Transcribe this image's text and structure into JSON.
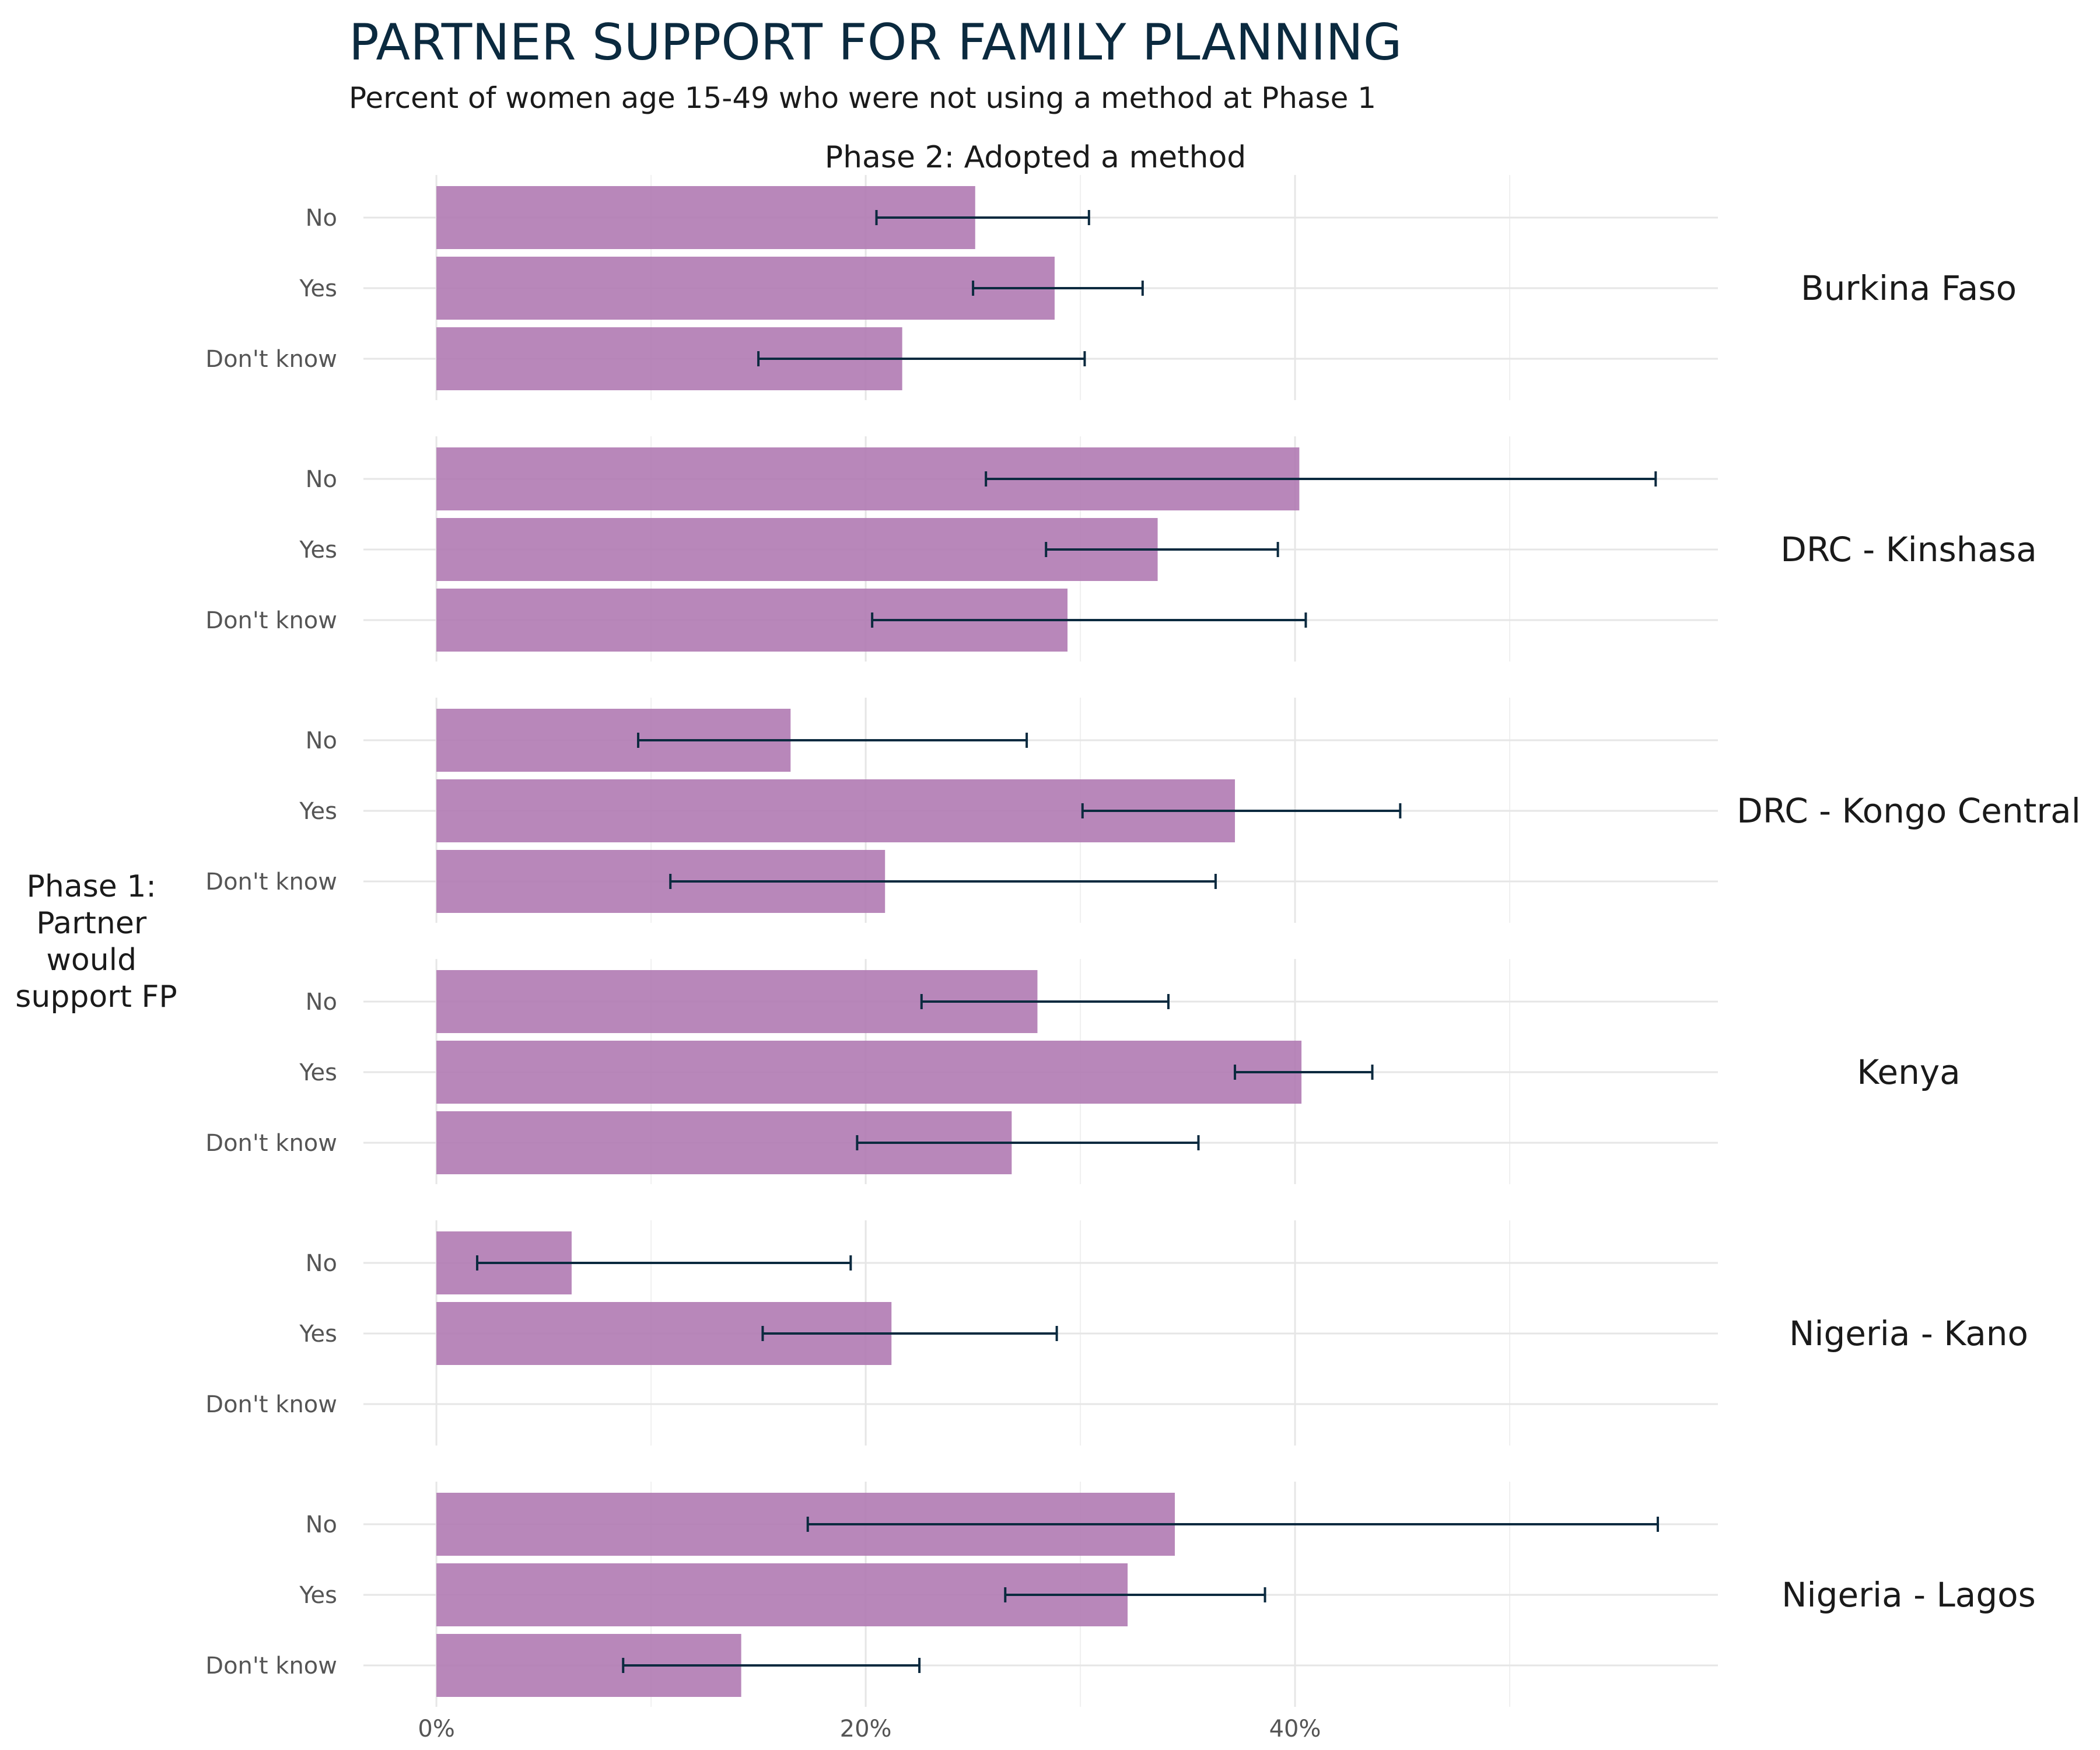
{
  "chart_data": {
    "type": "bar",
    "orientation": "horizontal",
    "title": "PARTNER SUPPORT FOR FAMILY PLANNING",
    "subtitle": "Percent of women age 15-49 who were not using a method at Phase 1",
    "facet_title": "Phase 2: Adopted a method",
    "ylabel_lines": [
      "Phase 1:",
      "Partner",
      "would",
      "support FP"
    ],
    "categories": [
      "No",
      "Yes",
      "Don't know"
    ],
    "x_ticks": [
      {
        "value": 0,
        "label": "0%"
      },
      {
        "value": 20,
        "label": "20%"
      },
      {
        "value": 40,
        "label": "40%"
      }
    ],
    "xlim": [
      -3.4,
      59.7
    ],
    "grid": true,
    "bar_color": "#b07ab3",
    "errorbar_color": "#0b2a3f",
    "panels": [
      {
        "name": "Burkina Faso",
        "bars": [
          {
            "category": "No",
            "value": 25.1,
            "lo": 20.5,
            "hi": 30.4
          },
          {
            "category": "Yes",
            "value": 28.8,
            "lo": 25.0,
            "hi": 32.9
          },
          {
            "category": "Don't know",
            "value": 21.7,
            "lo": 15.0,
            "hi": 30.2
          }
        ]
      },
      {
        "name": "DRC - Kinshasa",
        "bars": [
          {
            "category": "No",
            "value": 40.2,
            "lo": 25.6,
            "hi": 56.8
          },
          {
            "category": "Yes",
            "value": 33.6,
            "lo": 28.4,
            "hi": 39.2
          },
          {
            "category": "Don't know",
            "value": 29.4,
            "lo": 20.3,
            "hi": 40.5
          }
        ]
      },
      {
        "name": "DRC - Kongo Central",
        "bars": [
          {
            "category": "No",
            "value": 16.5,
            "lo": 9.4,
            "hi": 27.5
          },
          {
            "category": "Yes",
            "value": 37.2,
            "lo": 30.1,
            "hi": 44.9
          },
          {
            "category": "Don't know",
            "value": 20.9,
            "lo": 10.9,
            "hi": 36.3
          }
        ]
      },
      {
        "name": "Kenya",
        "bars": [
          {
            "category": "No",
            "value": 28.0,
            "lo": 22.6,
            "hi": 34.1
          },
          {
            "category": "Yes",
            "value": 40.3,
            "lo": 37.2,
            "hi": 43.6
          },
          {
            "category": "Don't know",
            "value": 26.8,
            "lo": 19.6,
            "hi": 35.5
          }
        ]
      },
      {
        "name": "Nigeria - Kano",
        "bars": [
          {
            "category": "No",
            "value": 6.3,
            "lo": 1.9,
            "hi": 19.3
          },
          {
            "category": "Yes",
            "value": 21.2,
            "lo": 15.2,
            "hi": 28.9
          },
          {
            "category": "Don't know",
            "value": null,
            "lo": null,
            "hi": null
          }
        ]
      },
      {
        "name": "Nigeria - Lagos",
        "bars": [
          {
            "category": "No",
            "value": 34.4,
            "lo": 17.3,
            "hi": 56.9
          },
          {
            "category": "Yes",
            "value": 32.2,
            "lo": 26.5,
            "hi": 38.6
          },
          {
            "category": "Don't know",
            "value": 14.2,
            "lo": 8.7,
            "hi": 22.5
          }
        ]
      }
    ]
  }
}
